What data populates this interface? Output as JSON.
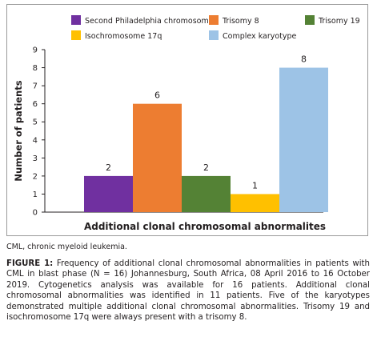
{
  "chart_data": {
    "type": "bar",
    "categories": [
      "Second Philadelphia chromosome",
      "Trisomy 8",
      "Trisomy 19",
      "Isochromosome 17q",
      "Complex karyotype"
    ],
    "values": [
      2,
      6,
      2,
      1,
      8
    ],
    "colors": [
      "#7030a0",
      "#ed7d31",
      "#548235",
      "#ffc000",
      "#9dc3e6"
    ],
    "xlabel": "Additional clonal chromosomal abnormalites",
    "ylabel": "Number of patients",
    "ylim": [
      0,
      9
    ],
    "yticks": [
      "0",
      "1",
      "2",
      "3",
      "4",
      "5",
      "6",
      "7",
      "8",
      "9"
    ],
    "grid": false,
    "legend_position": "top",
    "data_labels": [
      "2",
      "6",
      "2",
      "1",
      "8"
    ]
  },
  "footnote": "CML, chronic myeloid leukemia.",
  "caption": {
    "label": "FIGURE 1:",
    "text": "Frequency of additional clonal chromosomal abnormalities in patients with CML in blast phase (N = 16) Johannesburg, South Africa, 08 April 2016 to 16 October 2019. Cytogenetics analysis was available for 16 patients. Additional clonal chromosomal abnormalities was identified in 11 patients. Five of the karyotypes demonstrated multiple additional clonal chromosomal abnormalities. Trisomy 19 and isochromosome 17q were always present with a trisomy 8."
  }
}
